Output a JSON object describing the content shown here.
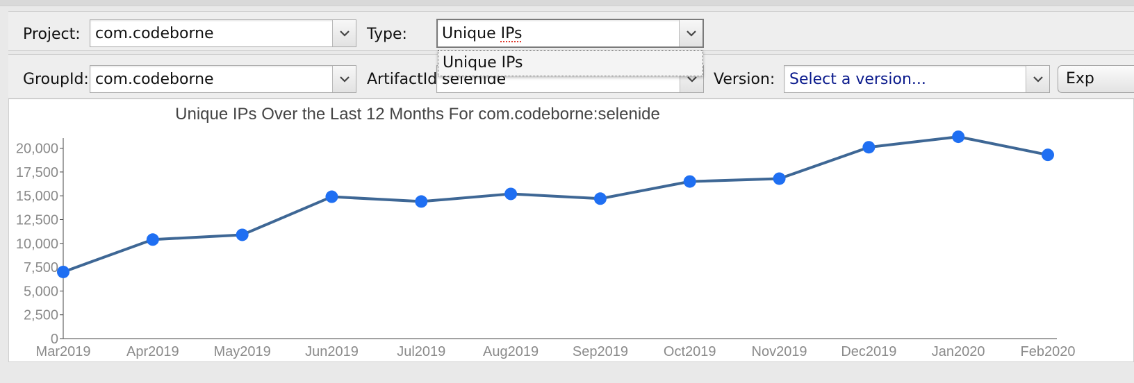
{
  "filters": {
    "project": {
      "label": "Project:",
      "value": "com.codeborne"
    },
    "type": {
      "label": "Type:",
      "value": "Unique IPs",
      "options": [
        "Unique IPs"
      ]
    },
    "group_id": {
      "label": "GroupId:",
      "value": "com.codeborne"
    },
    "artifact_id": {
      "label": "ArtifactId:",
      "value": "selenide"
    },
    "version": {
      "label": "Version:",
      "placeholder": "Select a version..."
    },
    "export_label": "Exp"
  },
  "chart_data": {
    "type": "line",
    "title": "Unique IPs Over the Last 12 Months For com.codeborne:selenide",
    "categories": [
      "Mar2019",
      "Apr2019",
      "May2019",
      "Jun2019",
      "Jul2019",
      "Aug2019",
      "Sep2019",
      "Oct2019",
      "Nov2019",
      "Dec2019",
      "Jan2020",
      "Feb2020"
    ],
    "series": [
      {
        "values": [
          7000,
          10400,
          10900,
          14900,
          14400,
          15200,
          14700,
          16500,
          16800,
          20100,
          21200,
          19300
        ]
      }
    ],
    "ylim": [
      0,
      21500
    ],
    "yticks": [
      0,
      2500,
      5000,
      7500,
      10000,
      12500,
      15000,
      17500,
      20000
    ],
    "ytick_labels": [
      "0",
      "2,500",
      "5,000",
      "7,500",
      "10,000",
      "12,500",
      "15,000",
      "17,500",
      "20,000"
    ],
    "grid": false,
    "colors": {
      "line": "#3e6795",
      "point": "#1f6ff2",
      "axis_text": "#8a8a8a",
      "title": "#444444"
    }
  }
}
